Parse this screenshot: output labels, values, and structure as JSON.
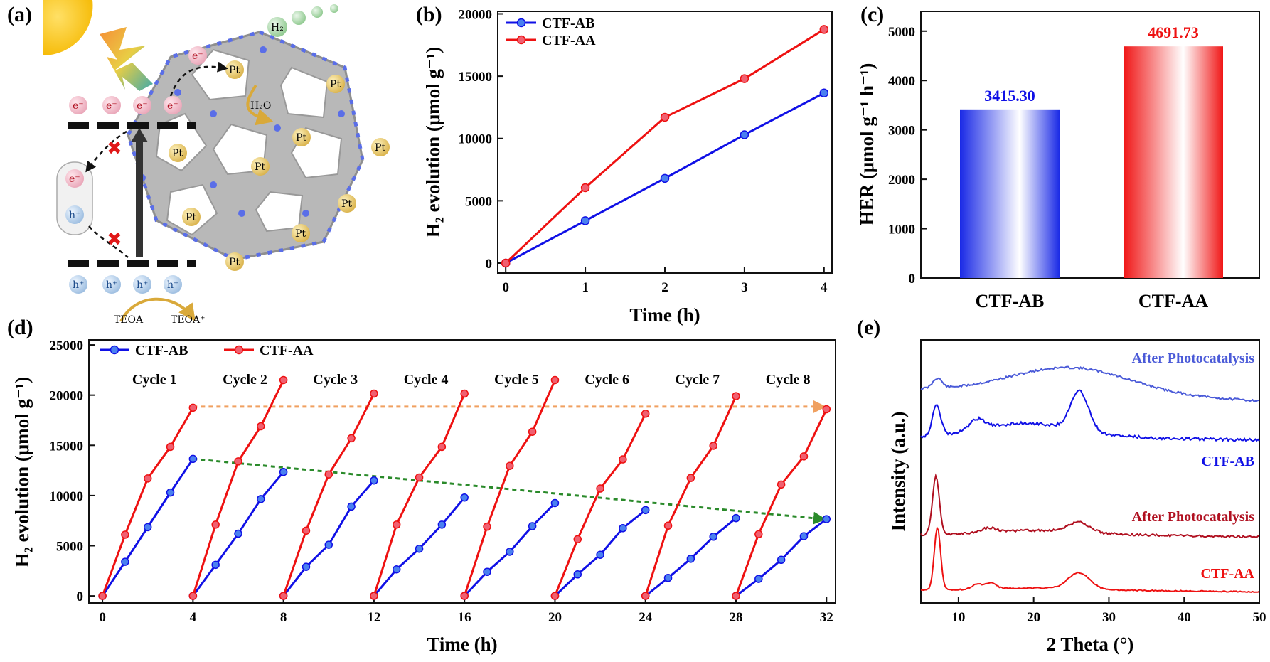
{
  "panels": {
    "a": "(a)",
    "b": "(b)",
    "c": "(c)",
    "d": "(d)",
    "e": "(e)"
  },
  "colors": {
    "ab": "#1010e6",
    "aa": "#ee1111",
    "aa_dark": "#b01020",
    "ab_light": "#4a5ad8",
    "orange_arrow": "#f0a060",
    "green_arrow": "#2a8a2a"
  },
  "schematic": {
    "electron": "e⁻",
    "hole": "h⁺",
    "pt": "Pt",
    "h2o": "H₂O",
    "h2": "H₂",
    "teoa": "TEOA",
    "teoa_plus": "TEOA⁺",
    "icons": [
      "sun-icon",
      "lightning-icon",
      "framework-structure",
      "electron-sphere",
      "hole-sphere",
      "pt-particle",
      "h2-bubble",
      "cross-mark-icon"
    ]
  },
  "chart_data": [
    {
      "id": "b",
      "type": "line",
      "xlabel": "Time (h)",
      "ylabel": "H₂ evolution (μmol g⁻¹)",
      "xlim": [
        -0.1,
        4.1
      ],
      "ylim": [
        -800,
        20200
      ],
      "xticks": [
        0,
        1,
        2,
        3,
        4
      ],
      "yticks": [
        0,
        5000,
        10000,
        15000,
        20000
      ],
      "legend": "top-left",
      "series": [
        {
          "name": "CTF-AB",
          "x": [
            0,
            1,
            2,
            3,
            4
          ],
          "y": [
            0,
            3400,
            6800,
            10300,
            13650
          ]
        },
        {
          "name": "CTF-AA",
          "x": [
            0,
            1,
            2,
            3,
            4
          ],
          "y": [
            0,
            6050,
            11700,
            14800,
            18750
          ]
        }
      ]
    },
    {
      "id": "c",
      "type": "bar",
      "ylabel": "HER (μmol g⁻¹ h⁻¹)",
      "ylim": [
        0,
        5400
      ],
      "yticks": [
        0,
        1000,
        2000,
        3000,
        4000,
        5000
      ],
      "categories": [
        "CTF-AB",
        "CTF-AA"
      ],
      "values": [
        3415.3,
        4691.73
      ],
      "value_labels": [
        "3415.30",
        "4691.73"
      ]
    },
    {
      "id": "d",
      "type": "line",
      "xlabel": "Time (h)",
      "ylabel": "H₂ evolution (μmol g⁻¹)",
      "xlim": [
        -0.6,
        32.4
      ],
      "ylim": [
        -700,
        25500
      ],
      "xticks": [
        0,
        4,
        8,
        12,
        16,
        20,
        24,
        28,
        32
      ],
      "yticks": [
        0,
        5000,
        10000,
        15000,
        20000,
        25000
      ],
      "legend": "top-left",
      "cycle_labels": [
        "Cycle 1",
        "Cycle 2",
        "Cycle 3",
        "Cycle 4",
        "Cycle 5",
        "Cycle 6",
        "Cycle 7",
        "Cycle 8"
      ],
      "series": [
        {
          "name": "CTF-AB",
          "cycles": [
            [
              0,
              3400,
              6850,
              10300,
              13650
            ],
            [
              0,
              3100,
              6200,
              9650,
              12350
            ],
            [
              0,
              2900,
              5100,
              8900,
              11500
            ],
            [
              0,
              2650,
              4700,
              7100,
              9800
            ],
            [
              0,
              2400,
              4400,
              6950,
              9250
            ],
            [
              0,
              2150,
              4100,
              6750,
              8550
            ],
            [
              0,
              1800,
              3700,
              5900,
              7750
            ],
            [
              0,
              1700,
              3600,
              5950,
              7650
            ]
          ]
        },
        {
          "name": "CTF-AA",
          "cycles": [
            [
              0,
              6100,
              11700,
              14850,
              18750
            ],
            [
              0,
              7100,
              13400,
              16900,
              21500
            ],
            [
              0,
              6500,
              12100,
              15700,
              20150
            ],
            [
              0,
              7100,
              11800,
              14850,
              20150
            ],
            [
              0,
              6900,
              12950,
              16350,
              21500
            ],
            [
              0,
              5650,
              10700,
              13600,
              18150
            ],
            [
              0,
              7000,
              11750,
              14950,
              19900
            ],
            [
              0,
              6150,
              11100,
              13900,
              18600
            ]
          ]
        }
      ],
      "trend_arrows": [
        {
          "color": "orange_arrow",
          "from": [
            4,
            18850
          ],
          "to": [
            32,
            18850
          ]
        },
        {
          "color": "green_arrow",
          "from": [
            4,
            13650
          ],
          "to": [
            32,
            7650
          ]
        }
      ]
    },
    {
      "id": "e",
      "type": "line",
      "xlabel": "2 Theta (°)",
      "ylabel": "Intensity (a.u.)",
      "xlim": [
        5,
        50
      ],
      "xticks": [
        10,
        20,
        30,
        40,
        50
      ],
      "traces": [
        {
          "label": "After Photocatalysis",
          "color": "ab_light"
        },
        {
          "label": "CTF-AB",
          "color": "ab"
        },
        {
          "label": "After Photocatalysis",
          "color": "aa_dark"
        },
        {
          "label": "CTF-AA",
          "color": "aa"
        }
      ]
    }
  ]
}
